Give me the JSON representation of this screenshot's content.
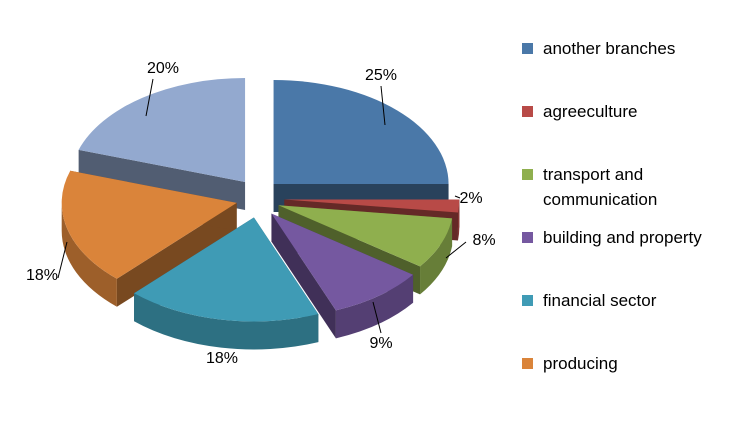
{
  "chart_data": {
    "type": "pie",
    "style": "exploded-3d",
    "title": "",
    "legend_position": "right",
    "slices": [
      {
        "label": "another branches",
        "value": 25,
        "display": "25%",
        "color": "#4A78A8"
      },
      {
        "label": "agreeculture",
        "value": 2,
        "display": "2%",
        "color": "#B84A47"
      },
      {
        "label": "transport and communication",
        "value": 8,
        "display": "8%",
        "color": "#8FAF4E"
      },
      {
        "label": "building and property",
        "value": 9,
        "display": "9%",
        "color": "#7558A0"
      },
      {
        "label": "financial sector",
        "value": 18,
        "display": "18%",
        "color": "#3F9BB5"
      },
      {
        "label": "producing",
        "value": 18,
        "display": "18%",
        "color": "#DA843A"
      },
      {
        "label": "",
        "value": 20,
        "display": "20%",
        "color": "#93A9CF"
      }
    ],
    "legend": [
      {
        "label": "another branches",
        "color": "#4A78A8"
      },
      {
        "label": "agreeculture",
        "color": "#B84A47"
      },
      {
        "label": "transport and communication",
        "color": "#8FAF4E"
      },
      {
        "label": "building and property",
        "color": "#7558A0"
      },
      {
        "label": "financial sector",
        "color": "#3F9BB5"
      },
      {
        "label": "producing",
        "color": "#DA843A"
      }
    ]
  }
}
